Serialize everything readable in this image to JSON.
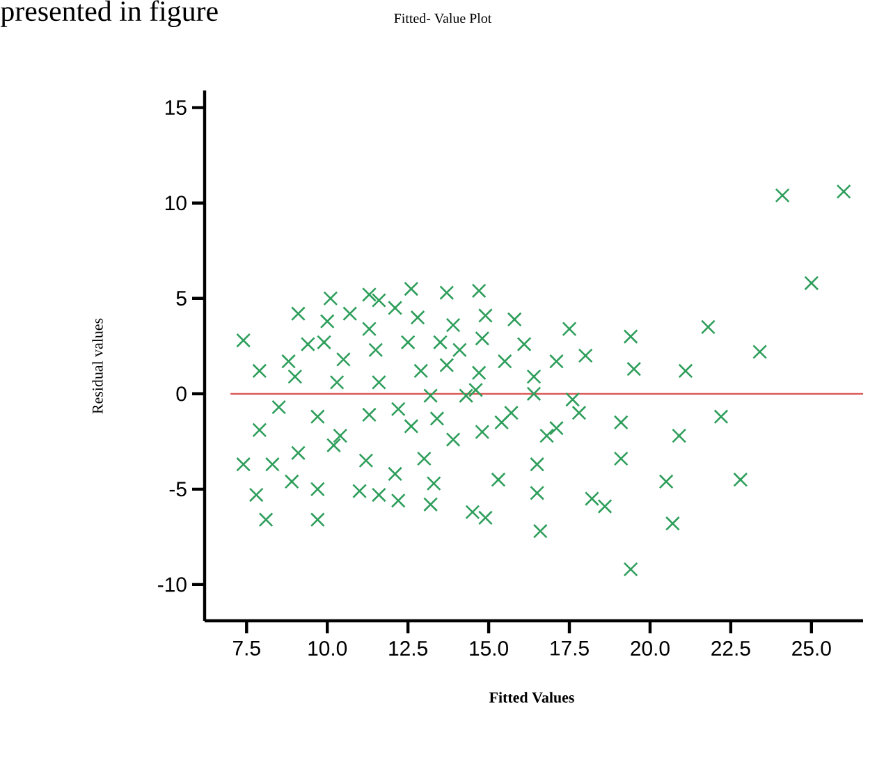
{
  "chart_data": {
    "type": "scatter",
    "title": "Fitted- Value Plot",
    "xlabel": "Fitted Values",
    "ylabel": "Residual values",
    "annotations": [
      "presented in figure"
    ],
    "marker": "cross",
    "grid": false,
    "xlim": [
      6.2,
      26.6
    ],
    "ylim": [
      -11.9,
      15.9
    ],
    "xticks": [
      7.5,
      {
        "value": 10,
        "label": "10.0"
      },
      12.5,
      {
        "value": 15,
        "label": "15.0"
      },
      17.5,
      {
        "value": 20,
        "label": "20.0"
      },
      22.5,
      {
        "value": 25,
        "label": "25.0"
      }
    ],
    "yticks": [
      -10,
      -5,
      0,
      5,
      10,
      15
    ],
    "ref_lines": [
      {
        "axis": "y",
        "value": 0,
        "color": "#d9534f"
      }
    ],
    "series": [
      {
        "color": "#2e9e5b",
        "x": [
          7.4,
          7.9,
          7.9,
          7.4,
          7.8,
          8.1,
          8.5,
          8.3,
          8.8,
          9.1,
          9.0,
          8.9,
          9.1,
          9.4,
          9.7,
          9.7,
          9.7,
          9.9,
          10.1,
          10.0,
          10.3,
          10.2,
          10.4,
          10.5,
          10.7,
          11.0,
          11.2,
          11.3,
          11.3,
          11.3,
          11.5,
          11.6,
          11.6,
          11.6,
          12.1,
          12.1,
          12.2,
          12.2,
          12.5,
          12.6,
          12.6,
          12.8,
          12.9,
          13.0,
          13.2,
          13.2,
          13.3,
          13.5,
          13.4,
          13.7,
          13.7,
          13.9,
          13.9,
          14.1,
          14.3,
          14.5,
          14.6,
          14.7,
          14.7,
          14.8,
          14.8,
          14.9,
          14.9,
          15.3,
          15.4,
          15.5,
          15.8,
          15.7,
          16.1,
          16.4,
          16.4,
          16.5,
          16.5,
          16.6,
          16.8,
          17.1,
          17.1,
          17.5,
          17.6,
          17.8,
          18.0,
          18.2,
          18.6,
          19.1,
          19.1,
          19.4,
          19.5,
          19.4,
          20.5,
          20.7,
          20.9,
          21.1,
          21.8,
          22.2,
          22.8,
          23.4,
          24.1,
          26.0,
          25.0
        ],
        "values": [
          2.8,
          1.2,
          -1.9,
          -3.7,
          -5.3,
          -6.6,
          -0.7,
          -3.7,
          1.7,
          4.2,
          0.9,
          -4.6,
          -3.1,
          2.6,
          -1.2,
          -5.0,
          -6.6,
          2.7,
          5.0,
          3.8,
          0.6,
          -2.7,
          -2.2,
          1.8,
          4.2,
          -5.1,
          -3.5,
          -1.1,
          5.2,
          3.4,
          2.3,
          0.6,
          4.9,
          -5.3,
          -4.2,
          4.5,
          -0.8,
          -5.6,
          2.7,
          5.5,
          -1.7,
          4.0,
          1.2,
          -3.4,
          -0.1,
          -5.8,
          -4.7,
          2.7,
          -1.3,
          5.3,
          1.5,
          3.6,
          -2.4,
          2.3,
          -0.1,
          -6.2,
          0.2,
          5.4,
          1.1,
          2.9,
          -2.0,
          -6.5,
          4.1,
          -4.5,
          -1.5,
          1.7,
          3.9,
          -1.0,
          2.6,
          0.9,
          0.0,
          -3.7,
          -5.2,
          -7.2,
          -2.2,
          -1.8,
          1.7,
          3.4,
          -0.3,
          -1.0,
          2.0,
          -5.5,
          -5.9,
          -1.5,
          -3.4,
          3.0,
          1.3,
          -9.2,
          -4.6,
          -6.8,
          -2.2,
          1.2,
          3.5,
          -1.2,
          -4.5,
          2.2,
          10.4,
          10.6,
          5.8
        ]
      }
    ]
  }
}
